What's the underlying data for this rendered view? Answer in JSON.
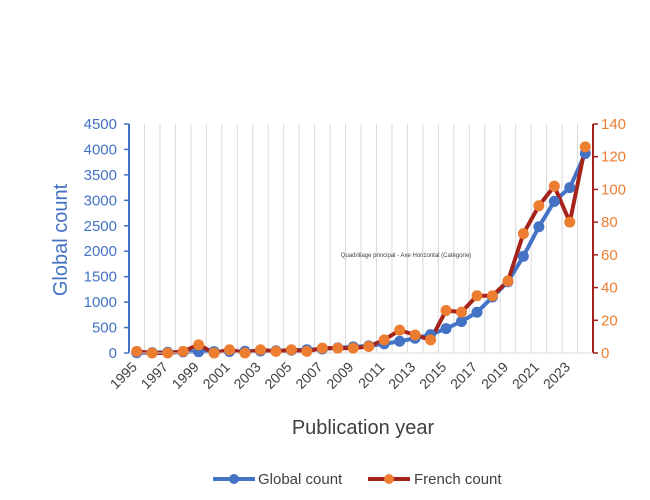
{
  "chart_data": {
    "type": "line",
    "title": "",
    "xlabel": "Publication year",
    "ylabel": "Global count",
    "y2label": "",
    "annotation": "Quadrillage principal - Axe Horizontal (Catégorie)",
    "x": [
      1995,
      1996,
      1997,
      1998,
      1999,
      2000,
      2001,
      2002,
      2003,
      2004,
      2005,
      2006,
      2007,
      2008,
      2009,
      2010,
      2011,
      2012,
      2013,
      2014,
      2015,
      2016,
      2017,
      2018,
      2019,
      2020,
      2021,
      2022,
      2023,
      2024
    ],
    "x_tick_labels": [
      "1995",
      "1997",
      "1999",
      "2001",
      "2003",
      "2005",
      "2007",
      "2009",
      "2011",
      "2013",
      "2015",
      "2017",
      "2019",
      "2021",
      "2023"
    ],
    "ylim": [
      0,
      4500
    ],
    "y_ticks": [
      "0",
      "500",
      "1000",
      "1500",
      "2000",
      "2500",
      "3000",
      "3500",
      "4000",
      "4500"
    ],
    "y2lim": [
      0,
      140
    ],
    "y2_ticks": [
      "0",
      "20",
      "40",
      "60",
      "80",
      "100",
      "120",
      "140"
    ],
    "grid": "vertical",
    "legend_position": "bottom",
    "series": [
      {
        "name": "Global count",
        "axis": "left",
        "color": "#4472c4",
        "values": [
          5,
          8,
          15,
          20,
          25,
          28,
          30,
          35,
          40,
          45,
          55,
          65,
          80,
          100,
          120,
          140,
          180,
          230,
          290,
          360,
          480,
          620,
          800,
          1100,
          1400,
          1900,
          2480,
          2980,
          3250,
          3920
        ]
      },
      {
        "name": "French count",
        "axis": "right",
        "color": "#ed7d31",
        "line_color": "#a5231a",
        "values": [
          1,
          0,
          0,
          1,
          5,
          0,
          2,
          0,
          2,
          1,
          2,
          1,
          3,
          3,
          3,
          4,
          8,
          14,
          11,
          8,
          26,
          25,
          35,
          35,
          44,
          73,
          90,
          102,
          80,
          126
        ]
      }
    ]
  }
}
